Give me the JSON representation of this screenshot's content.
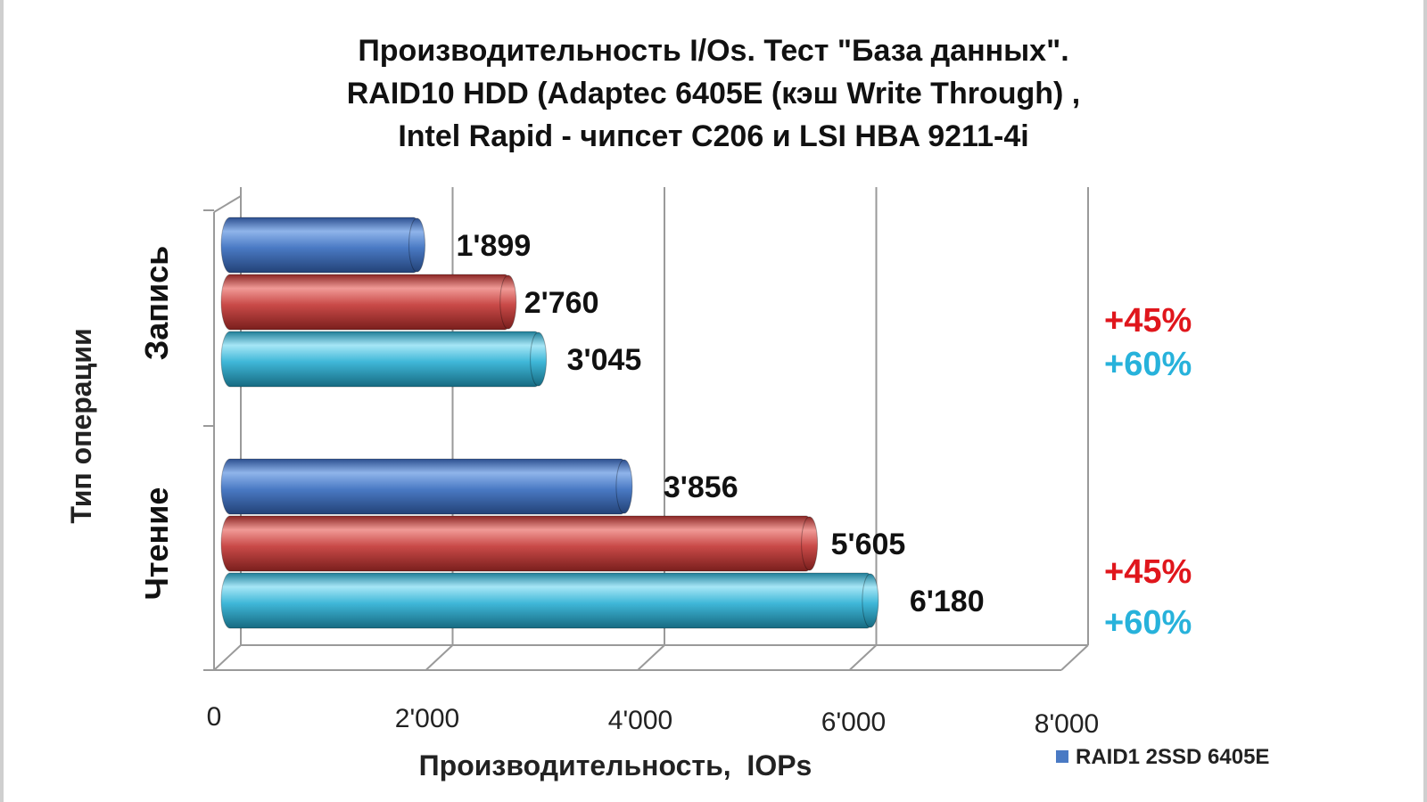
{
  "chart_data": {
    "type": "bar",
    "orientation": "horizontal",
    "style": "3d-cylinder",
    "title": [
      "Производительность I/Os. Тест \"База данных\".",
      "RAID10 HDD (Adaptec 6405E (кэш Write Through) ,",
      "Intel Rapid - чипсет С206 и LSI HBA 9211-4i"
    ],
    "xlabel": "Производительность,  IOPs",
    "ylabel": "Тип операции",
    "xlim": [
      0,
      8000
    ],
    "xticks": [
      {
        "value": 0,
        "label": "0"
      },
      {
        "value": 2000,
        "label": "2'000"
      },
      {
        "value": 4000,
        "label": "4'000"
      },
      {
        "value": 6000,
        "label": "6'000"
      },
      {
        "value": 8000,
        "label": "8'000"
      }
    ],
    "grid": true,
    "legend_position": "bottom-right",
    "categories": [
      "Запись",
      "Чтение"
    ],
    "series": [
      {
        "name": "RAID1 2SSD 6405E",
        "color": "#4a7ac4",
        "values": [
          1899,
          3856
        ],
        "value_labels": [
          "1'899",
          "3'856"
        ]
      },
      {
        "color": "#c94a48",
        "values": [
          2760,
          5605
        ],
        "value_labels": [
          "2'760",
          "5'605"
        ]
      },
      {
        "color": "#3fb7d8",
        "values": [
          3045,
          6180
        ],
        "value_labels": [
          "3'045",
          "6'180"
        ]
      }
    ],
    "annotations": [
      {
        "category": "Запись",
        "series_index": 1,
        "text": "+45%",
        "color": "#e0161c"
      },
      {
        "category": "Запись",
        "series_index": 2,
        "text": "+60%",
        "color": "#27b2db"
      },
      {
        "category": "Чтение",
        "series_index": 1,
        "text": "+45%",
        "color": "#e0161c"
      },
      {
        "category": "Чтение",
        "series_index": 2,
        "text": "+60%",
        "color": "#27b2db"
      }
    ]
  }
}
